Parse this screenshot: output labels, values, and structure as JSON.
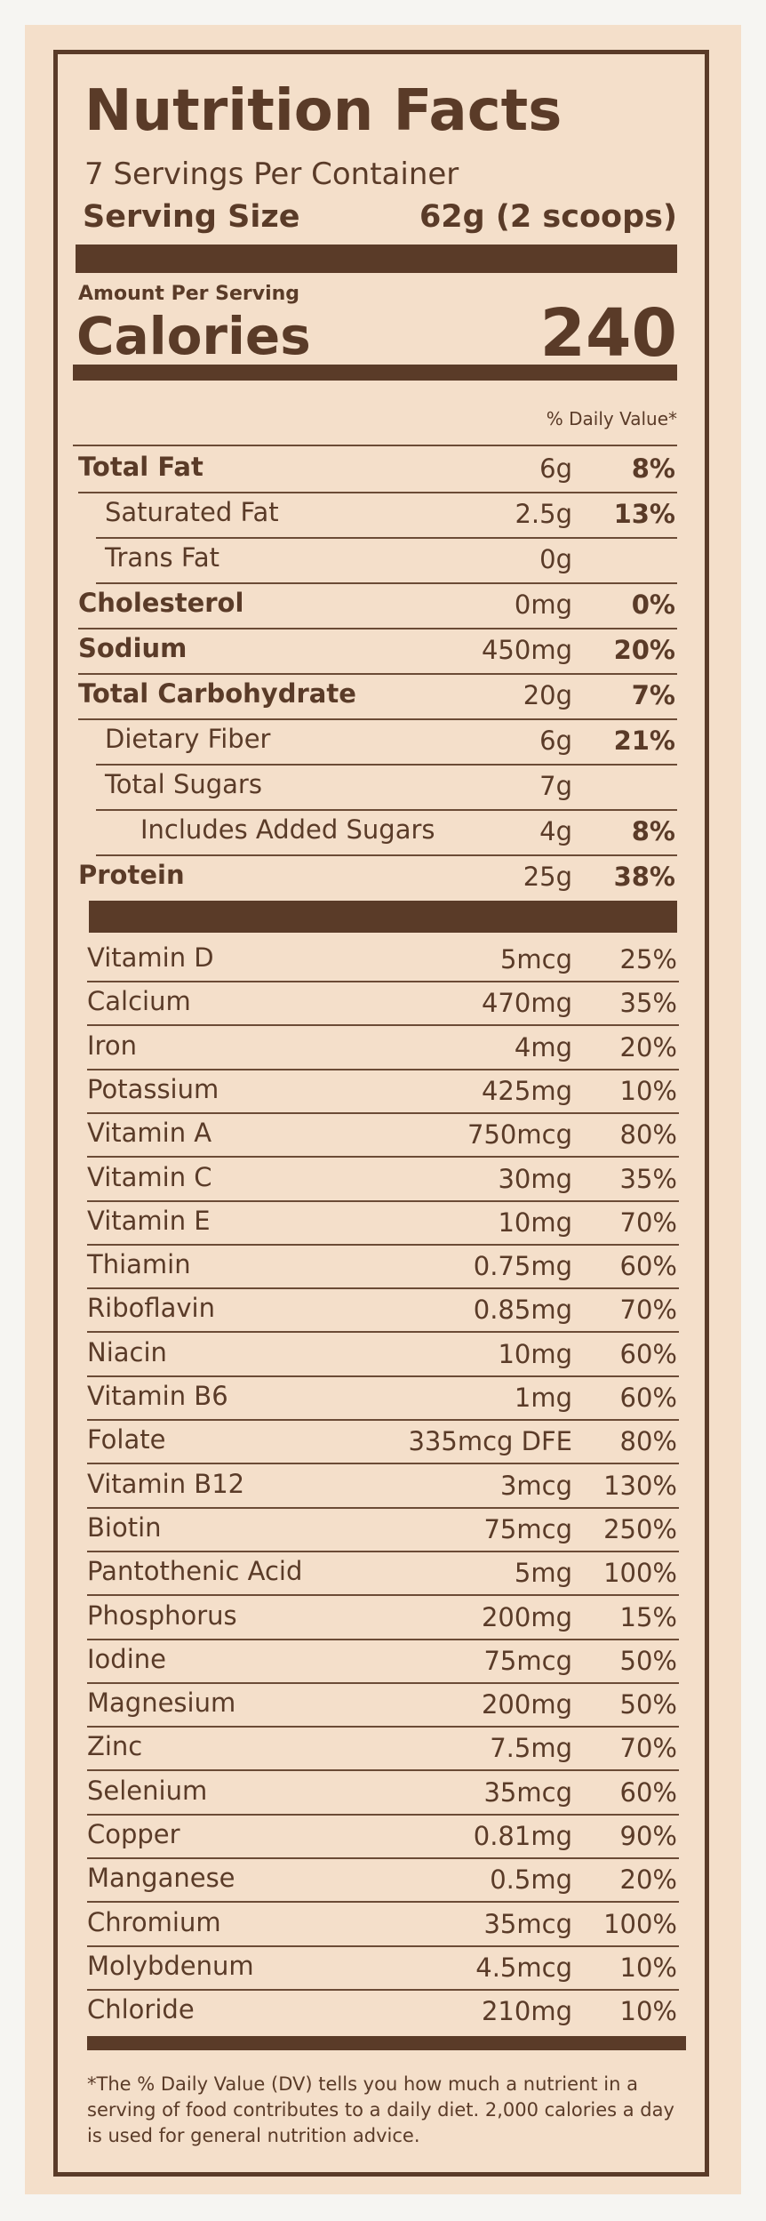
{
  "header": {
    "title": "Nutrition Facts",
    "servings": "7 Servings Per Container",
    "serving_size_label": "Serving Size",
    "serving_size_value": "62g (2 scoops)"
  },
  "calories": {
    "amount_per_serving": "Amount Per Serving",
    "label": "Calories",
    "value": "240"
  },
  "dv_header": "% Daily Value*",
  "nutrients": [
    [
      "Total Fat",
      "6g",
      "8%"
    ],
    [
      "Saturated Fat",
      "2.5g",
      "13%"
    ],
    [
      "Trans Fat",
      "0g"
    ],
    [
      "Cholesterol",
      "0mg",
      "0%"
    ],
    [
      "Sodium",
      "450mg",
      "20%"
    ],
    [
      "Total Carbohydrate",
      "20g",
      "7%"
    ],
    [
      "Dietary Fiber",
      "6g",
      "21%"
    ],
    [
      "Total Sugars",
      "7g"
    ],
    [
      "Includes Added Sugars",
      "4g",
      "8%"
    ],
    [
      "Protein",
      "25g",
      "38%"
    ]
  ],
  "vitamins": [
    [
      "Vitamin D",
      "5mcg",
      "25%"
    ],
    [
      "Calcium",
      "470mg",
      "35%"
    ],
    [
      "Iron",
      "4mg",
      "20%"
    ],
    [
      "Potassium",
      "425mg",
      "10%"
    ],
    [
      "Vitamin A",
      "750mcg",
      "80%"
    ],
    [
      "Vitamin C",
      "30mg",
      "35%"
    ],
    [
      "Vitamin E",
      "10mg",
      "70%"
    ],
    [
      "Thiamin",
      "0.75mg",
      "60%"
    ],
    [
      "Riboflavin",
      "0.85mg",
      "70%"
    ],
    [
      "Niacin",
      "10mg",
      "60%"
    ],
    [
      "Vitamin B6",
      "1mg",
      "60%"
    ],
    [
      "Folate",
      "335mcg DFE",
      "80%"
    ],
    [
      "Vitamin B12",
      "3mcg",
      "130%"
    ],
    [
      "Biotin",
      "75mcg",
      "250%"
    ],
    [
      "Pantothenic Acid",
      "5mg",
      "100%"
    ],
    [
      "Phosphorus",
      "200mg",
      "15%"
    ],
    [
      "Iodine",
      "75mcg",
      "50%"
    ],
    [
      "Magnesium",
      "200mg",
      "50%"
    ],
    [
      "Zinc",
      "7.5mg",
      "70%"
    ],
    [
      "Selenium",
      "35mcg",
      "60%"
    ],
    [
      "Copper",
      "0.81mg",
      "90%"
    ],
    [
      "Manganese",
      "0.5mg",
      "20%"
    ],
    [
      "Chromium",
      "35mcg",
      "100%"
    ],
    [
      "Molybdenum",
      "4.5mcg",
      "10%"
    ],
    [
      "Chloride",
      "210mg",
      "10%"
    ]
  ],
  "footnote": "*The % Daily Value (DV) tells you how much a nutrient in a serving of food contributes to a daily diet. 2,000 calories a day is used for general nutrition advice."
}
